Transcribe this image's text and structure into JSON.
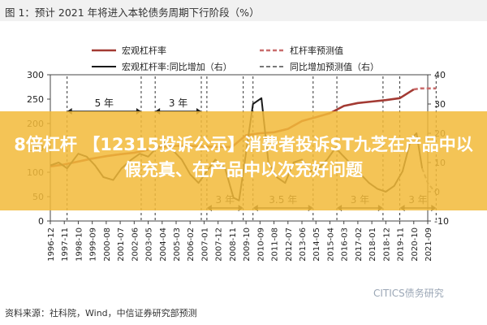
{
  "title": "图 1：预计 2021 年将进入本轮债务周期下行阶段（%）",
  "source": "资料来源：社科院，Wind，中信证券研究部预测",
  "watermark": "CITICS债务研究",
  "banner_text": "8倍杠杆 【12315投诉公示】消费者投诉ST九芝在产品中以假充真、在产品中以次充好问题",
  "colors": {
    "leverage": "#a33a33",
    "growth": "#1a1a1a",
    "forecast_leverage": "#c96c6c",
    "forecast_growth": "#777777",
    "banner": "#f2ba3a"
  },
  "chart_data": {
    "type": "line",
    "categories": [
      "1996-12",
      "1997-11",
      "1998-10",
      "1999-09",
      "2000-08",
      "2001-07",
      "2002-06",
      "2003-05",
      "2004-04",
      "2005-03",
      "2006-02",
      "2007-01",
      "2007-12",
      "2008-11",
      "2009-10",
      "2010-09",
      "2011-08",
      "2012-07",
      "2013-06",
      "2014-05",
      "2015-04",
      "2016-03",
      "2017-02",
      "2018-01",
      "2018-12",
      "2019-11",
      "2020-10",
      "2021-09"
    ],
    "left_axis": {
      "min": 0,
      "max": 300,
      "ticks": [
        0,
        50,
        100,
        150,
        200,
        250,
        300
      ]
    },
    "right_axis": {
      "min": -10,
      "max": 40,
      "ticks": [
        -10,
        0,
        10,
        20,
        30,
        40
      ]
    },
    "legend": [
      "宏观杠杆率",
      "杠杆率预测值",
      "宏观杠杆率:同比增加（右）",
      "同比增加预测值（右）"
    ],
    "series": [
      {
        "name": "宏观杠杆率",
        "axis": "left",
        "x": [
          0,
          1,
          2,
          3,
          4,
          5,
          6,
          7,
          8,
          9,
          10,
          11,
          12,
          13,
          14,
          15,
          16,
          17,
          18,
          19,
          20,
          21,
          22,
          23,
          24,
          25,
          26
        ],
        "values": [
          112,
          116,
          122,
          128,
          133,
          137,
          140,
          146,
          152,
          154,
          154,
          153,
          152,
          152,
          176,
          180,
          182,
          189,
          205,
          213,
          221,
          236,
          242,
          245,
          248,
          252,
          270
        ]
      },
      {
        "name": "杠杆率预测值",
        "axis": "left",
        "x": [
          26,
          26.5,
          27,
          27.6
        ],
        "values": [
          270,
          272,
          272,
          272
        ]
      },
      {
        "name": "宏观杠杆率:同比增加（右）",
        "axis": "right",
        "x": [
          0,
          0.6,
          1.2,
          2,
          2.6,
          3.2,
          3.8,
          4.5,
          5.1,
          5.8,
          6.4,
          7,
          7.6,
          8.2,
          8.8,
          9.4,
          10,
          10.6,
          11.2,
          11.8,
          12.5,
          13.1,
          13.5,
          13.9,
          14.5,
          15.1,
          15.6,
          16.2,
          16.8,
          17.4,
          18,
          18.6,
          19.2,
          19.8,
          20.4,
          21,
          21.6,
          22.2,
          22.8,
          23.4,
          24,
          24.6,
          25.2,
          25.8,
          26.2,
          26.6
        ],
        "values": [
          9,
          10,
          8,
          13,
          12,
          9,
          5,
          4,
          8,
          11,
          13,
          12,
          15,
          17,
          14,
          11,
          6,
          3,
          7,
          11,
          8,
          -2,
          -3,
          10,
          30,
          32,
          10,
          5,
          3,
          10,
          11,
          7,
          8,
          11,
          15,
          12,
          9,
          6,
          3,
          1,
          0,
          2,
          7,
          18,
          20,
          8
        ]
      },
      {
        "name": "同比增加预测值（右）",
        "axis": "right",
        "x": [
          26.6,
          27,
          27.5
        ],
        "values": [
          8,
          3,
          0
        ]
      }
    ],
    "annotations": [
      {
        "text": "5 年",
        "x_from": 1.2,
        "x_to": 6.5,
        "row": "top"
      },
      {
        "text": "3 年",
        "x_from": 7.5,
        "x_to": 10.8,
        "row": "top"
      },
      {
        "text": "3 年",
        "x_from": 11.2,
        "x_to": 13.8,
        "row": "bottom"
      },
      {
        "text": "3.5 年",
        "x_from": 14.5,
        "x_to": 18.8,
        "row": "bottom"
      },
      {
        "text": "3 年",
        "x_from": 20.5,
        "x_to": 23.8,
        "row": "bottom"
      },
      {
        "text": "3 年",
        "x_from": 25,
        "x_to": 27.6,
        "row": "bottom"
      }
    ]
  }
}
